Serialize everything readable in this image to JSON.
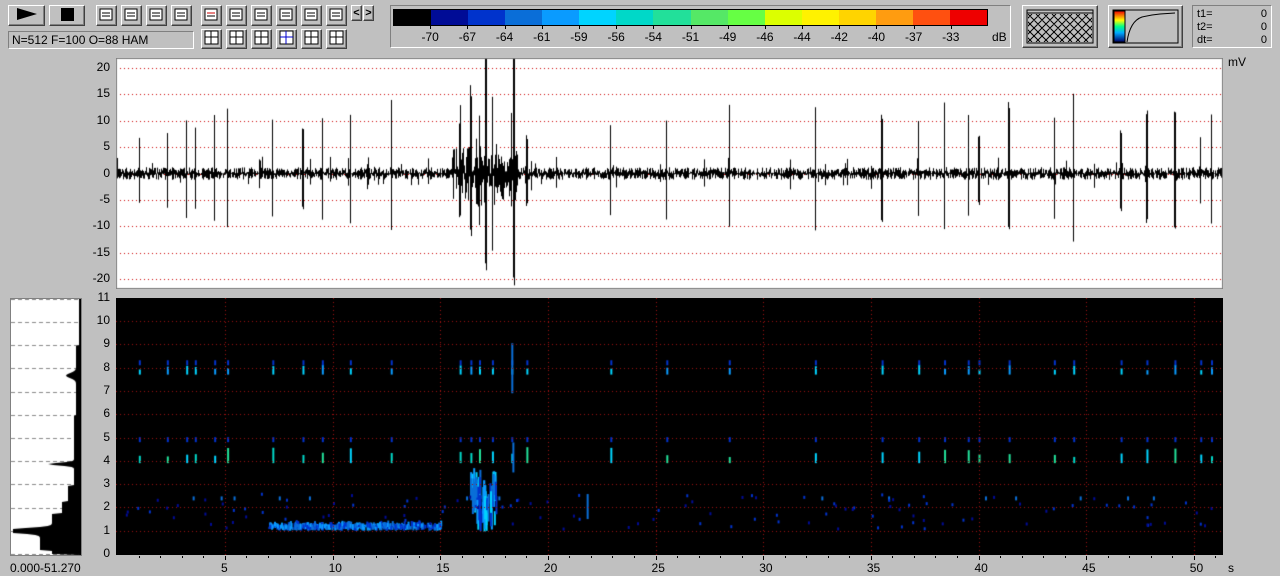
{
  "toolbar": {
    "row1": [
      "play-icon",
      "stop-icon",
      "copy-window-icon",
      "save-icon",
      "curve-icon",
      "peak-icon",
      "window-icon",
      "spectrum-icon",
      "pattern-icon",
      "grid-s-icon",
      "print-icon",
      "open-folder-icon"
    ],
    "row2": [
      "columns-icon",
      "rows-icon",
      "crosshair-icon",
      "cursor-icon",
      "frame-icon",
      "edit-icon"
    ],
    "prev": "<",
    "next": ">"
  },
  "status": "N=512 F=100 O=88 HAM",
  "colorbar": {
    "colors": [
      "#000000",
      "#000c96",
      "#0033cc",
      "#0a6ed8",
      "#0a9bff",
      "#00d4ff",
      "#00d8c8",
      "#22e09a",
      "#55e866",
      "#66ff44",
      "#dcff00",
      "#fff200",
      "#ffd400",
      "#ff9c10",
      "#ff5010",
      "#ee0000"
    ],
    "labels": [
      "-70",
      "-67",
      "-64",
      "-61",
      "-59",
      "-56",
      "-54",
      "-51",
      "-49",
      "-46",
      "-44",
      "-42",
      "-40",
      "-37",
      "-33"
    ],
    "unit": "dB"
  },
  "cursor": {
    "t1_label": "t1=",
    "t1": "0",
    "t2_label": "t2=",
    "t2": "0",
    "dt_label": "dt=",
    "dt": "0"
  },
  "chart_data": [
    {
      "type": "line",
      "ylabel": "mV",
      "ylim": [
        -21,
        21
      ],
      "yticks": [
        "20",
        "15",
        "10",
        "5",
        "0",
        "-5",
        "-10",
        "-15",
        "-20"
      ],
      "xlim": [
        0,
        51.27
      ],
      "grid": true,
      "color": "#000000"
    },
    {
      "type": "heatmap",
      "xlabel": "s",
      "ylim": [
        0,
        11
      ],
      "xlim": [
        0,
        51.27
      ],
      "yticks": [
        "0",
        "1",
        "2",
        "3",
        "4",
        "5",
        "6",
        "7",
        "8",
        "9",
        "10",
        "11"
      ],
      "xticks": [
        "5",
        "10",
        "15",
        "20",
        "25",
        "30",
        "35",
        "40",
        "45",
        "50"
      ],
      "grid": true,
      "background": "#000000",
      "gridcolor": "#a01010"
    }
  ],
  "profile": {
    "range": "0.000-51.270"
  }
}
